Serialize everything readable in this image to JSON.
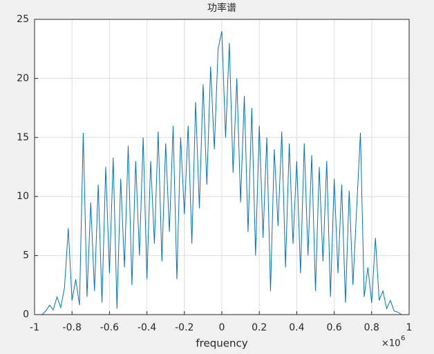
{
  "chart_data": {
    "type": "line",
    "title": "功率谱",
    "x_label": "frequency",
    "x_multiplier": {
      "base": "×10",
      "exponent": "6"
    },
    "xlim": [
      -1,
      1
    ],
    "xticks": [
      -1,
      -0.8,
      -0.6,
      -0.4,
      -0.2,
      0,
      0.2,
      0.4,
      0.6,
      0.8,
      1
    ],
    "ylim": [
      0,
      25
    ],
    "yticks": [
      0,
      5,
      10,
      15,
      20,
      25
    ],
    "grid": true,
    "series": [
      {
        "color": "#0072bd",
        "x": [
          -0.96,
          -0.94,
          -0.92,
          -0.9,
          -0.88,
          -0.86,
          -0.84,
          -0.82,
          -0.8,
          -0.78,
          -0.76,
          -0.74,
          -0.72,
          -0.7,
          -0.68,
          -0.66,
          -0.64,
          -0.62,
          -0.6,
          -0.58,
          -0.56,
          -0.54,
          -0.52,
          -0.5,
          -0.48,
          -0.46,
          -0.44,
          -0.42,
          -0.4,
          -0.38,
          -0.36,
          -0.34,
          -0.32,
          -0.3,
          -0.28,
          -0.26,
          -0.24,
          -0.22,
          -0.2,
          -0.18,
          -0.16,
          -0.14,
          -0.12,
          -0.1,
          -0.08,
          -0.06,
          -0.04,
          -0.02,
          0,
          0.02,
          0.04,
          0.06,
          0.08,
          0.1,
          0.12,
          0.14,
          0.16,
          0.18,
          0.2,
          0.22,
          0.24,
          0.26,
          0.28,
          0.3,
          0.32,
          0.34,
          0.36,
          0.38,
          0.4,
          0.42,
          0.44,
          0.46,
          0.48,
          0.5,
          0.52,
          0.54,
          0.56,
          0.58,
          0.6,
          0.62,
          0.64,
          0.66,
          0.68,
          0.7,
          0.72,
          0.74,
          0.76,
          0.78,
          0.8,
          0.82,
          0.84,
          0.86,
          0.88,
          0.9,
          0.92,
          0.94,
          0.96
        ],
        "values": [
          0,
          0.3,
          0.8,
          0.4,
          1.5,
          0.6,
          2.3,
          7.3,
          1.2,
          3.0,
          0.8,
          15.4,
          1.5,
          9.5,
          2.0,
          11.0,
          1.0,
          12.5,
          3.5,
          13.3,
          0.5,
          11.5,
          4.0,
          14.3,
          2.5,
          13.0,
          5.0,
          15.0,
          3.0,
          13.0,
          6.0,
          15.5,
          4.5,
          14.5,
          7.0,
          16.0,
          3.0,
          15.0,
          8.5,
          16.0,
          6.0,
          18.0,
          9.0,
          19.5,
          11.0,
          21.0,
          14.0,
          22.5,
          24.0,
          15.0,
          23.0,
          12.0,
          20.0,
          9.5,
          18.5,
          7.0,
          17.5,
          5.0,
          16.0,
          6.5,
          15.0,
          2.0,
          14.0,
          7.5,
          15.5,
          4.0,
          14.5,
          6.0,
          13.0,
          3.5,
          14.5,
          5.0,
          13.5,
          2.0,
          12.5,
          4.5,
          13.0,
          1.5,
          11.5,
          3.5,
          11.0,
          1.0,
          10.5,
          2.5,
          9.0,
          15.4,
          1.5,
          4.0,
          1.0,
          6.5,
          1.2,
          2.0,
          0.5,
          1.2,
          0.3,
          0.2,
          0
        ]
      }
    ]
  }
}
